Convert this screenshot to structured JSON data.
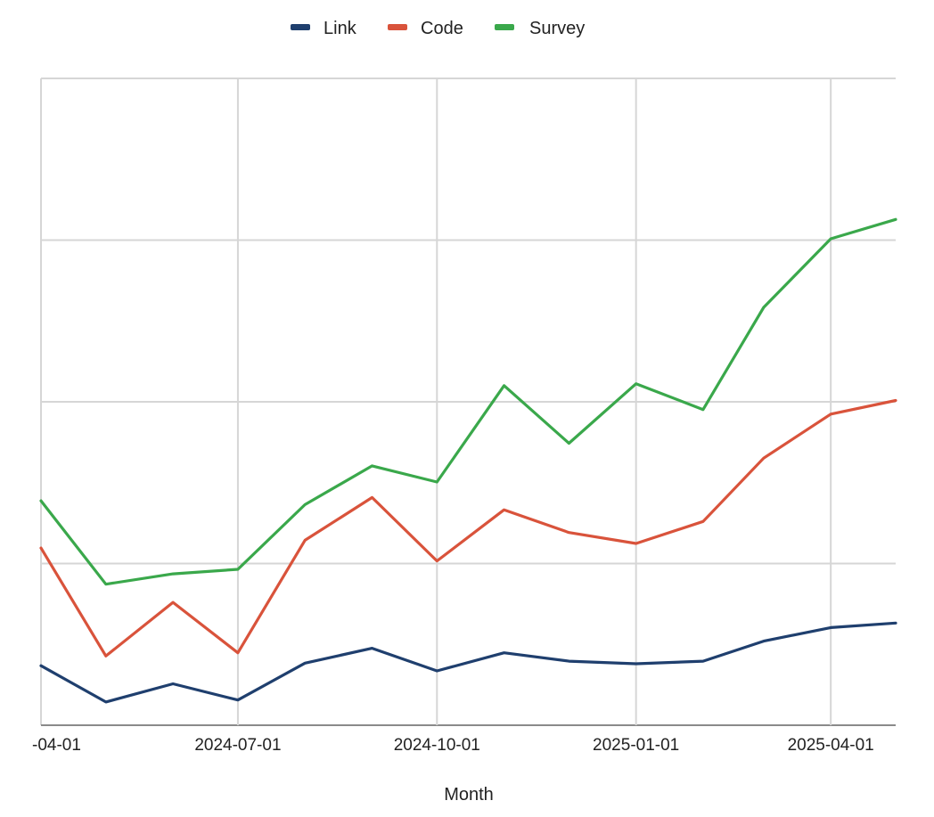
{
  "chart_data": {
    "type": "line",
    "title": "",
    "xlabel": "Month",
    "ylabel": "",
    "x_ticks": [
      "-04-01",
      "2024-07-01",
      "2024-10-01",
      "2025-01-01",
      "2025-04-01"
    ],
    "x": [
      "2024-04-01",
      "2024-05-01",
      "2024-06-01",
      "2024-07-01",
      "2024-08-01",
      "2024-09-01",
      "2024-10-01",
      "2024-11-01",
      "2024-12-01",
      "2025-01-01",
      "2025-02-01",
      "2025-03-01",
      "2025-04-01",
      "2025-05-01"
    ],
    "xlim": [
      "2024-04-01",
      "2025-05-01"
    ],
    "ylim": [
      0,
      100
    ],
    "y_gridlines": [
      25,
      50,
      75,
      100
    ],
    "grid": true,
    "legend_position": "top-center",
    "series": [
      {
        "name": "Link",
        "color": "#1f3f6e",
        "values": [
          9.2,
          3.6,
          6.4,
          3.9,
          9.6,
          11.9,
          8.4,
          11.2,
          9.9,
          9.5,
          9.9,
          13.0,
          15.1,
          15.8
        ]
      },
      {
        "name": "Code",
        "color": "#d9533b",
        "values": [
          27.4,
          10.7,
          19.0,
          11.2,
          28.6,
          35.2,
          25.4,
          33.3,
          29.8,
          28.1,
          31.5,
          41.3,
          48.1,
          50.2
        ]
      },
      {
        "name": "Survey",
        "color": "#3aa84b",
        "values": [
          34.7,
          21.8,
          23.4,
          24.1,
          34.1,
          40.1,
          37.6,
          52.5,
          43.6,
          52.8,
          48.8,
          64.6,
          75.2,
          78.2
        ]
      }
    ]
  }
}
